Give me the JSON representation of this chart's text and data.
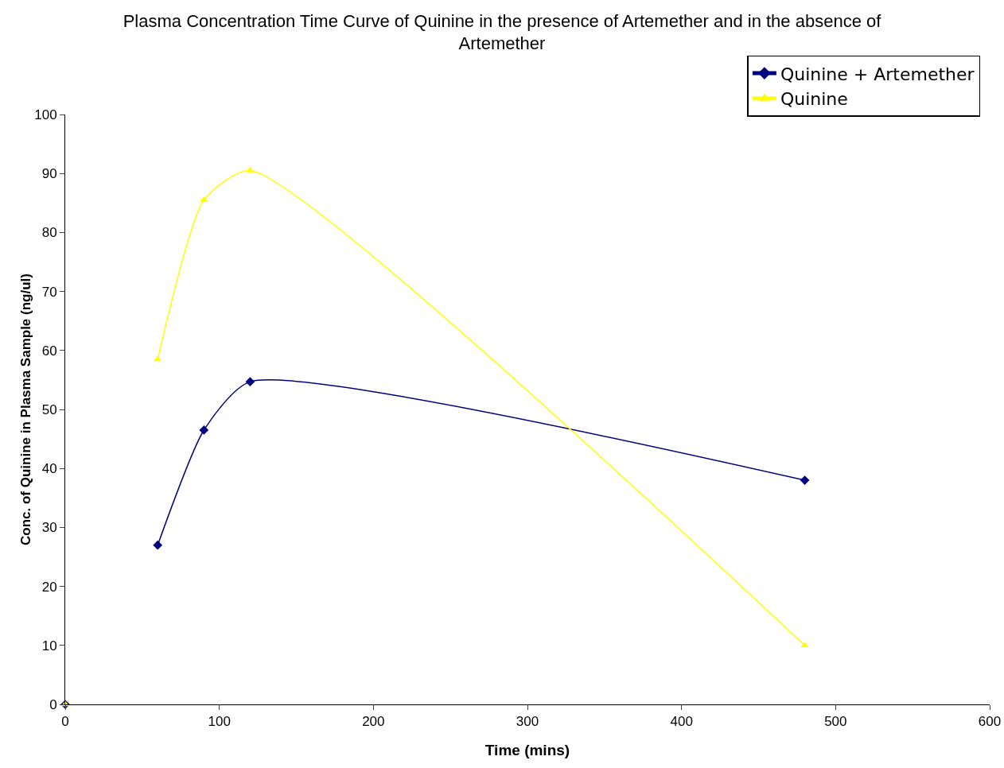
{
  "chart_data": {
    "type": "line",
    "title": "Plasma Concentration Time Curve of Quinine in the presence of Artemether and in the absence of Artemether",
    "xlabel": "Time (mins)",
    "ylabel": "Conc. of Quinine in Plasma Sample (ng/ul)",
    "x": [
      0,
      30,
      60,
      90,
      120,
      480
    ],
    "series": [
      {
        "name": "Quinine + Artemether",
        "color": "#000080",
        "marker": "diamond",
        "values": [
          0,
          null,
          27,
          46.5,
          54.7,
          38
        ]
      },
      {
        "name": "Quinine",
        "color": "#ffff00",
        "marker": "triangle",
        "values": [
          0,
          null,
          58.5,
          85.5,
          90.5,
          10
        ]
      }
    ],
    "xlim": [
      0,
      600
    ],
    "xticks": [
      0,
      100,
      200,
      300,
      400,
      500,
      600
    ],
    "ylim": [
      0,
      100
    ],
    "yticks": [
      0,
      10,
      20,
      30,
      40,
      50,
      60,
      70,
      80,
      90,
      100
    ],
    "grid": false,
    "legend": "top right"
  }
}
